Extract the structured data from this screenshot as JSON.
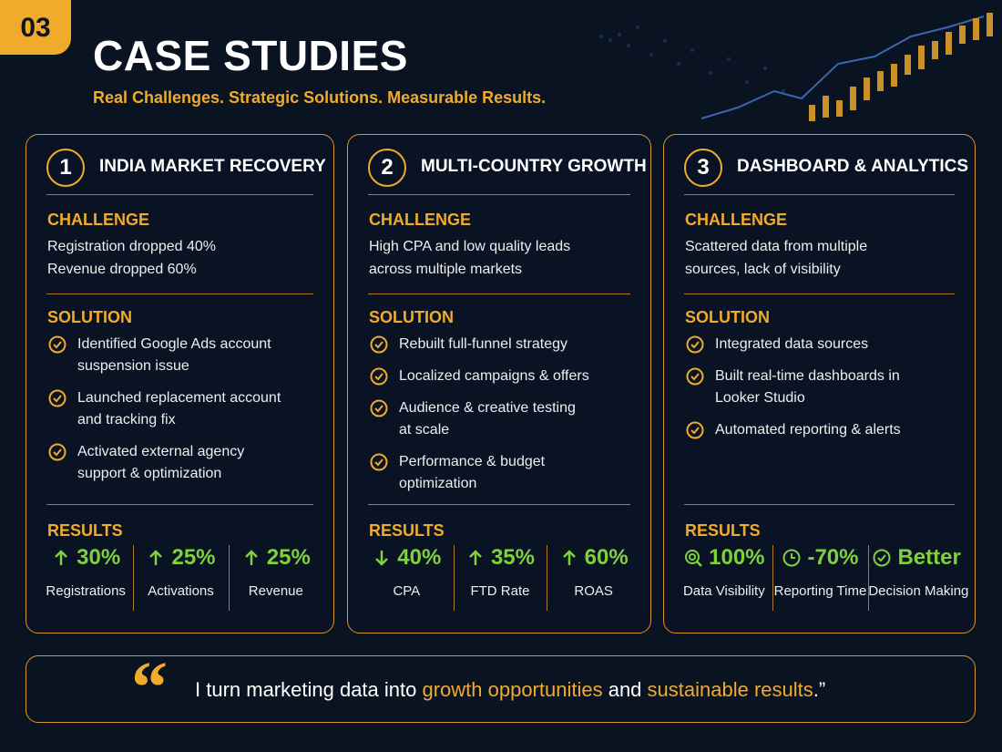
{
  "header": {
    "badge": "03",
    "title": "CASE STUDIES",
    "subtitle": "Real Challenges. Strategic Solutions. Measurable Results."
  },
  "cards": [
    {
      "number": "1",
      "title": "INDIA MARKET RECOVERY",
      "challenge_label": "CHALLENGE",
      "challenge": [
        "Registration dropped 40%",
        "Revenue dropped 60%"
      ],
      "solution_label": "SOLUTION",
      "solutions": [
        [
          "Identified Google Ads account",
          "suspension issue"
        ],
        [
          "Launched replacement account",
          "and tracking fix"
        ],
        [
          "Activated external agency",
          "support & optimization"
        ]
      ],
      "results_label": "RESULTS",
      "results": [
        {
          "icon": "up",
          "value": "30%",
          "label": "Registrations"
        },
        {
          "icon": "up",
          "value": "25%",
          "label": "Activations"
        },
        {
          "icon": "up",
          "value": "25%",
          "label": "Revenue"
        }
      ]
    },
    {
      "number": "2",
      "title": "MULTI-COUNTRY GROWTH",
      "challenge_label": "CHALLENGE",
      "challenge": [
        "High CPA and low quality leads",
        "across multiple markets"
      ],
      "solution_label": "SOLUTION",
      "solutions": [
        [
          "Rebuilt full-funnel strategy"
        ],
        [
          "Localized campaigns & offers"
        ],
        [
          "Audience & creative testing",
          "at scale"
        ],
        [
          "Performance & budget",
          "optimization"
        ]
      ],
      "results_label": "RESULTS",
      "results": [
        {
          "icon": "down",
          "value": "40%",
          "label": "CPA"
        },
        {
          "icon": "up",
          "value": "35%",
          "label": "FTD Rate"
        },
        {
          "icon": "up",
          "value": "60%",
          "label": "ROAS"
        }
      ]
    },
    {
      "number": "3",
      "title": "DASHBOARD & ANALYTICS",
      "challenge_label": "CHALLENGE",
      "challenge": [
        "Scattered data from multiple",
        "sources, lack of visibility"
      ],
      "solution_label": "SOLUTION",
      "solutions": [
        [
          "Integrated data sources"
        ],
        [
          "Built real-time dashboards in",
          "Looker Studio"
        ],
        [
          "Automated reporting & alerts"
        ]
      ],
      "results_label": "RESULTS",
      "results": [
        {
          "icon": "search",
          "value": "100%",
          "label": "Data Visibility"
        },
        {
          "icon": "clock",
          "value": "-70%",
          "label": "Reporting Time"
        },
        {
          "icon": "check",
          "value": "Better",
          "label": "Decision Making"
        }
      ]
    }
  ],
  "quote": {
    "parts": [
      "I turn marketing data into ",
      "growth opportunities",
      " and ",
      "sustainable results",
      ".”"
    ]
  }
}
